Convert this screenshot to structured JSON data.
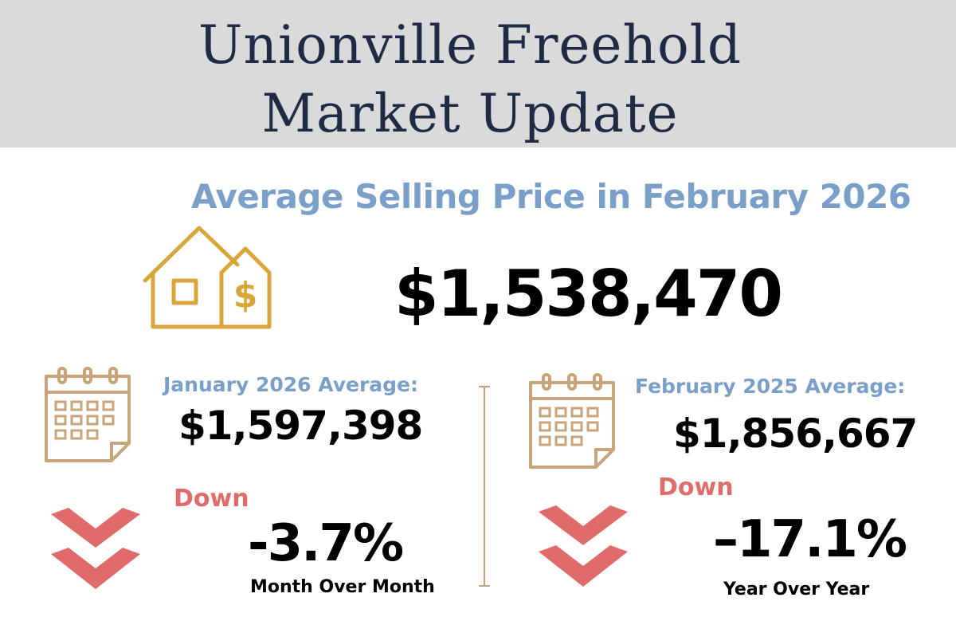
{
  "header": {
    "title_line1": "Unionville Freehold",
    "title_line2": "Market Update"
  },
  "headline": "Average Selling Price in February 2026",
  "main_price": "$1,538,470",
  "left_panel": {
    "label": "January 2026 Average:",
    "value": "$1,597,398",
    "direction": "Down",
    "change": "-3.7%",
    "caption": "Month Over Month"
  },
  "right_panel": {
    "label": "February 2025 Average:",
    "value": "$1,856,667",
    "direction": "Down",
    "change": "–17.1%",
    "caption": "Year Over Year"
  },
  "icons": {
    "house": "house-dollar-icon",
    "calendar": "calendar-icon",
    "chevron": "double-chevron-down-icon"
  },
  "colors": {
    "header_bg": "#dadada",
    "title": "#1f2a44",
    "accent_blue": "#7a9fc9",
    "gold": "#d9a63a",
    "tan": "#c9a37a",
    "down_red": "#e06b6b"
  }
}
